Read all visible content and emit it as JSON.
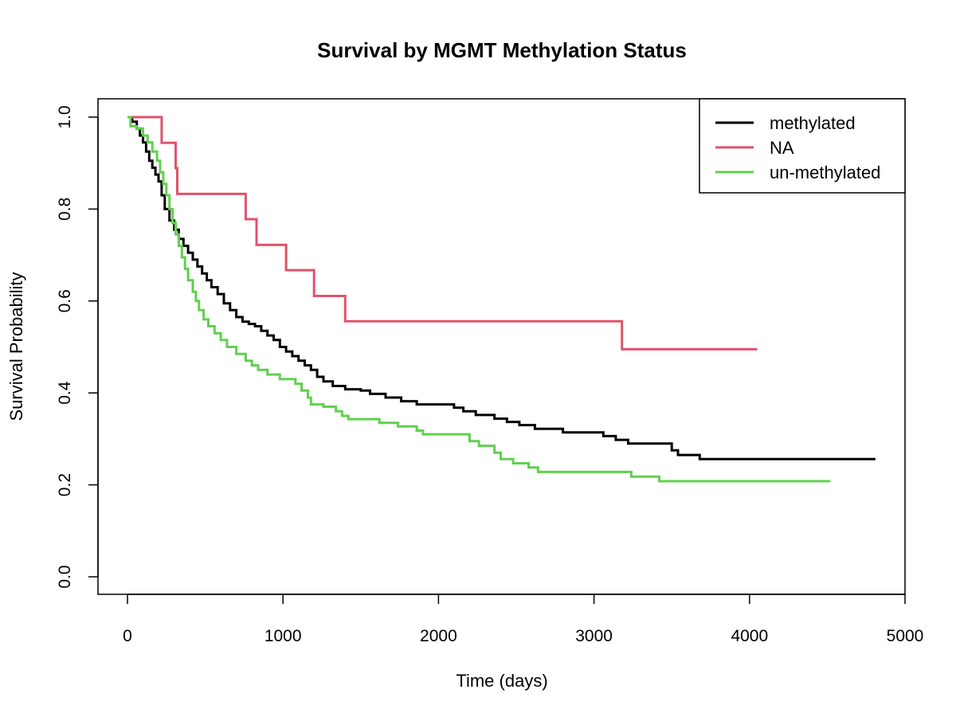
{
  "chart_data": {
    "type": "line",
    "step": true,
    "title": "Survival by MGMT Methylation Status",
    "xlabel": "Time (days)",
    "ylabel": "Survival Probability",
    "xlim": [
      0,
      5000
    ],
    "ylim": [
      0,
      1.0
    ],
    "x_ticks": [
      "0",
      "1000",
      "2000",
      "3000",
      "4000",
      "5000"
    ],
    "y_ticks": [
      "0.0",
      "0.2",
      "0.4",
      "0.6",
      "0.8",
      "1.0"
    ],
    "grid": false,
    "legend_position": "top-right",
    "series": [
      {
        "name": "methylated",
        "color": "#000000",
        "points": [
          [
            0,
            1.0
          ],
          [
            30,
            0.99
          ],
          [
            60,
            0.975
          ],
          [
            80,
            0.96
          ],
          [
            100,
            0.945
          ],
          [
            120,
            0.925
          ],
          [
            140,
            0.905
          ],
          [
            160,
            0.89
          ],
          [
            180,
            0.875
          ],
          [
            200,
            0.86
          ],
          [
            220,
            0.83
          ],
          [
            240,
            0.8
          ],
          [
            270,
            0.775
          ],
          [
            300,
            0.755
          ],
          [
            330,
            0.735
          ],
          [
            360,
            0.72
          ],
          [
            390,
            0.705
          ],
          [
            420,
            0.69
          ],
          [
            450,
            0.675
          ],
          [
            480,
            0.66
          ],
          [
            510,
            0.645
          ],
          [
            540,
            0.63
          ],
          [
            580,
            0.615
          ],
          [
            620,
            0.595
          ],
          [
            660,
            0.58
          ],
          [
            700,
            0.565
          ],
          [
            740,
            0.555
          ],
          [
            780,
            0.55
          ],
          [
            820,
            0.545
          ],
          [
            860,
            0.535
          ],
          [
            900,
            0.525
          ],
          [
            940,
            0.515
          ],
          [
            980,
            0.5
          ],
          [
            1020,
            0.49
          ],
          [
            1060,
            0.48
          ],
          [
            1100,
            0.47
          ],
          [
            1140,
            0.46
          ],
          [
            1180,
            0.45
          ],
          [
            1220,
            0.435
          ],
          [
            1260,
            0.425
          ],
          [
            1320,
            0.415
          ],
          [
            1400,
            0.408
          ],
          [
            1500,
            0.405
          ],
          [
            1560,
            0.398
          ],
          [
            1660,
            0.39
          ],
          [
            1760,
            0.382
          ],
          [
            1860,
            0.375
          ],
          [
            2100,
            0.368
          ],
          [
            2160,
            0.36
          ],
          [
            2240,
            0.352
          ],
          [
            2360,
            0.344
          ],
          [
            2440,
            0.337
          ],
          [
            2520,
            0.33
          ],
          [
            2620,
            0.322
          ],
          [
            2800,
            0.314
          ],
          [
            3060,
            0.306
          ],
          [
            3140,
            0.298
          ],
          [
            3220,
            0.29
          ],
          [
            3500,
            0.275
          ],
          [
            3540,
            0.265
          ],
          [
            3680,
            0.256
          ],
          [
            4810,
            0.256
          ]
        ]
      },
      {
        "name": "NA",
        "color": "#df536b",
        "points": [
          [
            0,
            1.0
          ],
          [
            220,
            0.944
          ],
          [
            310,
            0.889
          ],
          [
            320,
            0.833
          ],
          [
            760,
            0.778
          ],
          [
            830,
            0.722
          ],
          [
            1020,
            0.667
          ],
          [
            1200,
            0.611
          ],
          [
            1400,
            0.556
          ],
          [
            3180,
            0.495
          ],
          [
            4050,
            0.495
          ]
        ]
      },
      {
        "name": "un-methylated",
        "color": "#61d04f",
        "points": [
          [
            0,
            1.0
          ],
          [
            20,
            0.98
          ],
          [
            60,
            0.975
          ],
          [
            100,
            0.96
          ],
          [
            130,
            0.945
          ],
          [
            160,
            0.925
          ],
          [
            190,
            0.905
          ],
          [
            210,
            0.88
          ],
          [
            230,
            0.855
          ],
          [
            250,
            0.83
          ],
          [
            270,
            0.8
          ],
          [
            290,
            0.77
          ],
          [
            310,
            0.745
          ],
          [
            330,
            0.72
          ],
          [
            350,
            0.695
          ],
          [
            370,
            0.67
          ],
          [
            390,
            0.645
          ],
          [
            420,
            0.62
          ],
          [
            440,
            0.6
          ],
          [
            460,
            0.58
          ],
          [
            490,
            0.56
          ],
          [
            520,
            0.545
          ],
          [
            560,
            0.53
          ],
          [
            600,
            0.515
          ],
          [
            640,
            0.5
          ],
          [
            700,
            0.485
          ],
          [
            760,
            0.47
          ],
          [
            800,
            0.46
          ],
          [
            840,
            0.45
          ],
          [
            900,
            0.44
          ],
          [
            980,
            0.43
          ],
          [
            1080,
            0.42
          ],
          [
            1120,
            0.405
          ],
          [
            1160,
            0.39
          ],
          [
            1180,
            0.375
          ],
          [
            1260,
            0.37
          ],
          [
            1340,
            0.36
          ],
          [
            1380,
            0.35
          ],
          [
            1420,
            0.343
          ],
          [
            1620,
            0.335
          ],
          [
            1740,
            0.327
          ],
          [
            1860,
            0.318
          ],
          [
            1900,
            0.31
          ],
          [
            2200,
            0.295
          ],
          [
            2260,
            0.285
          ],
          [
            2360,
            0.27
          ],
          [
            2400,
            0.256
          ],
          [
            2480,
            0.247
          ],
          [
            2580,
            0.238
          ],
          [
            2640,
            0.228
          ],
          [
            3240,
            0.218
          ],
          [
            3420,
            0.208
          ],
          [
            4520,
            0.208
          ]
        ]
      }
    ]
  }
}
